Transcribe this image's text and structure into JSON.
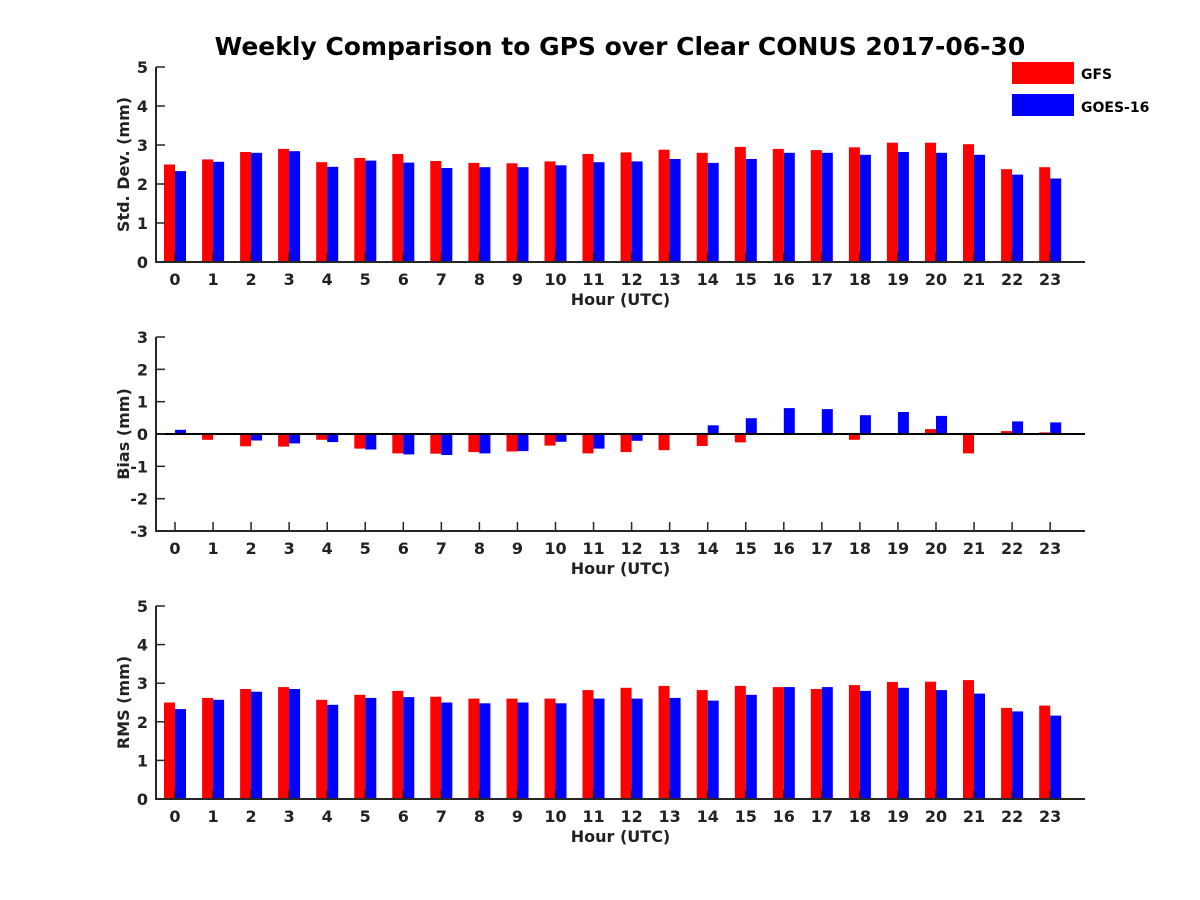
{
  "figure_title": "Weekly Comparison to GPS over Clear CONUS 2017-06-30",
  "legend": [
    {
      "name": "GFS",
      "color": "#ff0000"
    },
    {
      "name": "GOES-16",
      "color": "#0000ff"
    }
  ],
  "chart_data": [
    {
      "type": "bar",
      "ylabel": "Std. Dev. (mm)",
      "xlabel": "Hour (UTC)",
      "ylim": [
        0,
        5
      ],
      "yticks": [
        0,
        1,
        2,
        3,
        4,
        5
      ],
      "categories": [
        "0",
        "1",
        "2",
        "3",
        "4",
        "5",
        "6",
        "7",
        "8",
        "9",
        "10",
        "11",
        "12",
        "13",
        "14",
        "15",
        "16",
        "17",
        "18",
        "19",
        "20",
        "21",
        "22",
        "23"
      ],
      "series": [
        {
          "name": "GFS",
          "values": [
            2.5,
            2.63,
            2.82,
            2.9,
            2.56,
            2.67,
            2.77,
            2.59,
            2.54,
            2.53,
            2.58,
            2.77,
            2.81,
            2.88,
            2.8,
            2.95,
            2.9,
            2.87,
            2.94,
            3.06,
            3.06,
            3.02,
            2.38,
            2.43
          ]
        },
        {
          "name": "GOES-16",
          "values": [
            2.33,
            2.57,
            2.8,
            2.84,
            2.44,
            2.6,
            2.55,
            2.41,
            2.43,
            2.43,
            2.48,
            2.56,
            2.58,
            2.64,
            2.54,
            2.64,
            2.8,
            2.8,
            2.75,
            2.82,
            2.8,
            2.75,
            2.24,
            2.14
          ]
        }
      ]
    },
    {
      "type": "bar",
      "ylabel": "Bias (mm)",
      "xlabel": "Hour (UTC)",
      "ylim": [
        -3,
        3
      ],
      "yticks": [
        -3,
        -2,
        -1,
        0,
        1,
        2,
        3
      ],
      "categories": [
        "0",
        "1",
        "2",
        "3",
        "4",
        "5",
        "6",
        "7",
        "8",
        "9",
        "10",
        "11",
        "12",
        "13",
        "14",
        "15",
        "16",
        "17",
        "18",
        "19",
        "20",
        "21",
        "22",
        "23"
      ],
      "series": [
        {
          "name": "GFS",
          "values": [
            0.03,
            -0.18,
            -0.38,
            -0.39,
            -0.18,
            -0.45,
            -0.6,
            -0.61,
            -0.56,
            -0.54,
            -0.36,
            -0.6,
            -0.56,
            -0.5,
            -0.37,
            -0.26,
            0.02,
            0.02,
            -0.18,
            0.01,
            0.15,
            -0.6,
            0.09,
            0.05
          ]
        },
        {
          "name": "GOES-16",
          "values": [
            0.13,
            0.02,
            -0.2,
            -0.29,
            -0.25,
            -0.48,
            -0.63,
            -0.65,
            -0.6,
            -0.53,
            -0.24,
            -0.45,
            -0.21,
            0.0,
            0.27,
            0.49,
            0.8,
            0.77,
            0.58,
            0.68,
            0.56,
            0.0,
            0.39,
            0.36
          ]
        }
      ]
    },
    {
      "type": "bar",
      "ylabel": "RMS (mm)",
      "xlabel": "Hour (UTC)",
      "ylim": [
        0,
        5
      ],
      "yticks": [
        0,
        1,
        2,
        3,
        4,
        5
      ],
      "categories": [
        "0",
        "1",
        "2",
        "3",
        "4",
        "5",
        "6",
        "7",
        "8",
        "9",
        "10",
        "11",
        "12",
        "13",
        "14",
        "15",
        "16",
        "17",
        "18",
        "19",
        "20",
        "21",
        "22",
        "23"
      ],
      "series": [
        {
          "name": "GFS",
          "values": [
            2.5,
            2.62,
            2.85,
            2.9,
            2.57,
            2.7,
            2.8,
            2.65,
            2.6,
            2.6,
            2.6,
            2.82,
            2.88,
            2.93,
            2.82,
            2.93,
            2.9,
            2.85,
            2.95,
            3.03,
            3.04,
            3.08,
            2.36,
            2.42
          ]
        },
        {
          "name": "GOES-16",
          "values": [
            2.33,
            2.57,
            2.78,
            2.85,
            2.44,
            2.62,
            2.64,
            2.5,
            2.48,
            2.5,
            2.48,
            2.6,
            2.6,
            2.62,
            2.55,
            2.7,
            2.9,
            2.9,
            2.8,
            2.88,
            2.82,
            2.73,
            2.27,
            2.16
          ]
        }
      ]
    }
  ]
}
